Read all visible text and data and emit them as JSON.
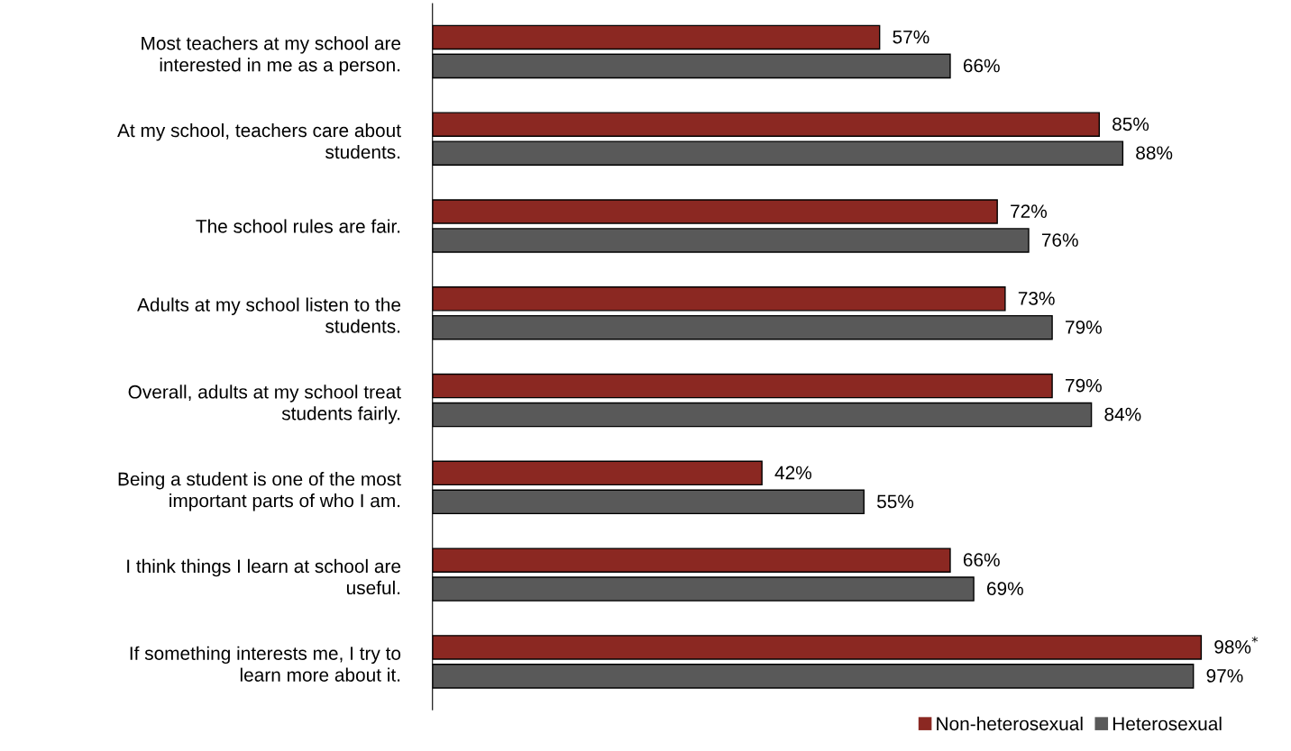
{
  "chart_data": {
    "type": "bar",
    "orientation": "horizontal",
    "categories": [
      "Most teachers at my school are\ninterested in me as a person.",
      "At my school, teachers care about\nstudents.",
      "The school rules are fair.",
      "Adults at my school listen to the\nstudents.",
      "Overall, adults at my school treat\nstudents fairly.",
      "Being a student is one of the most\nimportant parts of who I am.",
      "I think things I learn at school are\nuseful.",
      "If something interests me, I try to\nlearn more about it."
    ],
    "series": [
      {
        "name": "Non-heterosexual",
        "color": "#8b2822",
        "values": [
          57,
          85,
          72,
          73,
          79,
          42,
          66,
          98
        ],
        "value_labels": [
          "57%",
          "85%",
          "72%",
          "73%",
          "79%",
          "42%",
          "66%",
          "98%$^{*}$"
        ]
      },
      {
        "name": "Heterosexual",
        "color": "#595959",
        "values": [
          66,
          88,
          76,
          79,
          84,
          55,
          69,
          97
        ],
        "value_labels": [
          "66%",
          "88%",
          "76%",
          "79%",
          "84%",
          "55%",
          "69%",
          "97%"
        ]
      }
    ],
    "legend": "bottom right",
    "grid": false
  }
}
